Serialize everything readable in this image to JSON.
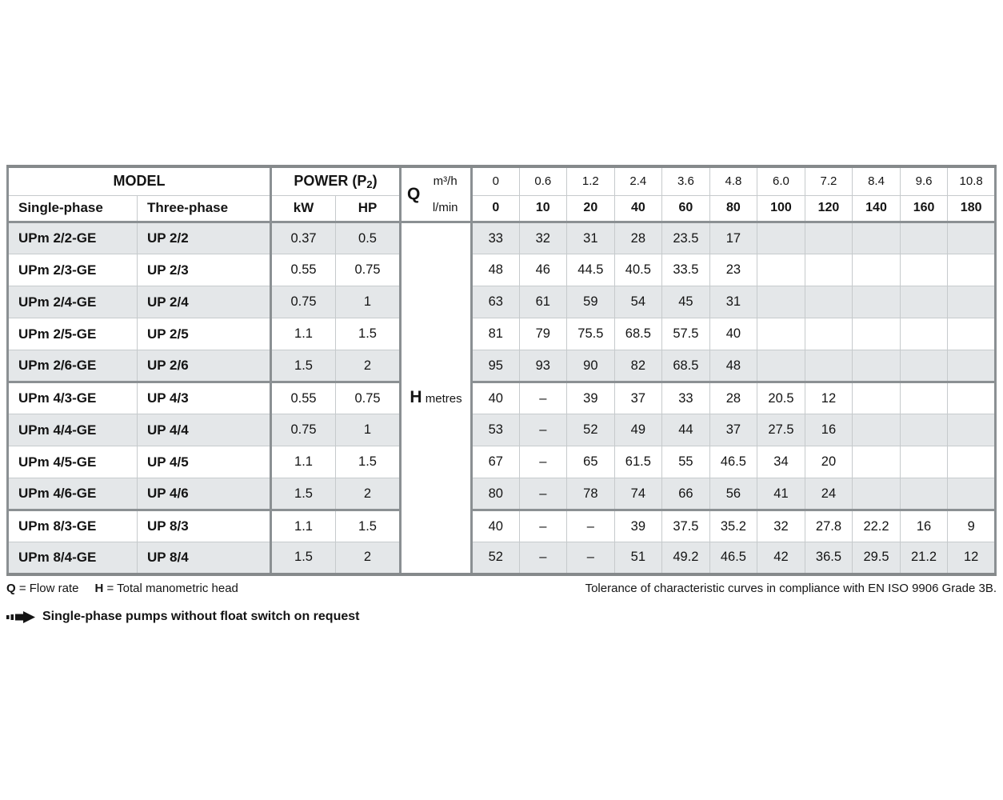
{
  "table": {
    "model_header": "MODEL",
    "single_phase_header": "Single-phase",
    "three_phase_header": "Three-phase",
    "power_prefix": "POWER (P",
    "power_sub": "2",
    "power_suffix": ")",
    "kw_header": "kW",
    "hp_header": "HP",
    "q_label": "Q",
    "m3h_label": "m³/h",
    "lmin_label": "l/min",
    "h_label": "H",
    "h_unit": "metres",
    "m3h_values": [
      "0",
      "0.6",
      "1.2",
      "2.4",
      "3.6",
      "4.8",
      "6.0",
      "7.2",
      "8.4",
      "9.6",
      "10.8"
    ],
    "lmin_values": [
      "0",
      "10",
      "20",
      "40",
      "60",
      "80",
      "100",
      "120",
      "140",
      "160",
      "180"
    ],
    "rows": [
      {
        "single": "UPm 2/2-GE",
        "three": "UP 2/2",
        "kw": "0.37",
        "hp": "0.5",
        "group_start": false,
        "values": [
          "33",
          "32",
          "31",
          "28",
          "23.5",
          "17",
          "",
          "",
          "",
          "",
          ""
        ]
      },
      {
        "single": "UPm 2/3-GE",
        "three": "UP 2/3",
        "kw": "0.55",
        "hp": "0.75",
        "group_start": false,
        "values": [
          "48",
          "46",
          "44.5",
          "40.5",
          "33.5",
          "23",
          "",
          "",
          "",
          "",
          ""
        ]
      },
      {
        "single": "UPm 2/4-GE",
        "three": "UP 2/4",
        "kw": "0.75",
        "hp": "1",
        "group_start": false,
        "values": [
          "63",
          "61",
          "59",
          "54",
          "45",
          "31",
          "",
          "",
          "",
          "",
          ""
        ]
      },
      {
        "single": "UPm 2/5-GE",
        "three": "UP 2/5",
        "kw": "1.1",
        "hp": "1.5",
        "group_start": false,
        "values": [
          "81",
          "79",
          "75.5",
          "68.5",
          "57.5",
          "40",
          "",
          "",
          "",
          "",
          ""
        ]
      },
      {
        "single": "UPm 2/6-GE",
        "three": "UP 2/6",
        "kw": "1.5",
        "hp": "2",
        "group_start": false,
        "values": [
          "95",
          "93",
          "90",
          "82",
          "68.5",
          "48",
          "",
          "",
          "",
          "",
          ""
        ]
      },
      {
        "single": "UPm 4/3-GE",
        "three": "UP 4/3",
        "kw": "0.55",
        "hp": "0.75",
        "group_start": true,
        "values": [
          "40",
          "–",
          "39",
          "37",
          "33",
          "28",
          "20.5",
          "12",
          "",
          "",
          ""
        ]
      },
      {
        "single": "UPm 4/4-GE",
        "three": "UP 4/4",
        "kw": "0.75",
        "hp": "1",
        "group_start": false,
        "values": [
          "53",
          "–",
          "52",
          "49",
          "44",
          "37",
          "27.5",
          "16",
          "",
          "",
          ""
        ]
      },
      {
        "single": "UPm 4/5-GE",
        "three": "UP 4/5",
        "kw": "1.1",
        "hp": "1.5",
        "group_start": false,
        "values": [
          "67",
          "–",
          "65",
          "61.5",
          "55",
          "46.5",
          "34",
          "20",
          "",
          "",
          ""
        ]
      },
      {
        "single": "UPm 4/6-GE",
        "three": "UP 4/6",
        "kw": "1.5",
        "hp": "2",
        "group_start": false,
        "values": [
          "80",
          "–",
          "78",
          "74",
          "66",
          "56",
          "41",
          "24",
          "",
          "",
          ""
        ]
      },
      {
        "single": "UPm 8/3-GE",
        "three": "UP 8/3",
        "kw": "1.1",
        "hp": "1.5",
        "group_start": true,
        "values": [
          "40",
          "–",
          "–",
          "39",
          "37.5",
          "35.2",
          "32",
          "27.8",
          "22.2",
          "16",
          "9"
        ]
      },
      {
        "single": "UPm 8/4-GE",
        "three": "UP 8/4",
        "kw": "1.5",
        "hp": "2",
        "group_start": false,
        "values": [
          "52",
          "–",
          "–",
          "51",
          "49.2",
          "46.5",
          "42",
          "36.5",
          "29.5",
          "21.2",
          "12"
        ]
      }
    ]
  },
  "footer": {
    "q_def_bold": "Q",
    "q_def_rest": "= Flow rate",
    "h_def_bold": "H",
    "h_def_rest": "= Total manometric head",
    "tolerance": "Tolerance of characteristic curves in compliance with EN ISO 9906 Grade 3B.",
    "note": "Single-phase pumps without float switch on request"
  }
}
